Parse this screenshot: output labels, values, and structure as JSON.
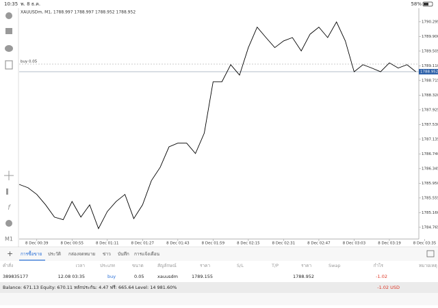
{
  "status_bar": {
    "time": "10:35",
    "date": "พ. 8 ธ.ค.",
    "battery": "58%"
  },
  "timeframe": "M1",
  "chart_data": {
    "type": "line",
    "title": "XAUUSDm, M1, 1788.997 1788.997 1788.952 1788.952",
    "x": [
      "8 Dec 00:31",
      "8 Dec 00:35",
      "8 Dec 00:39",
      "8 Dec 00:43",
      "8 Dec 00:47",
      "8 Dec 00:51",
      "8 Dec 00:55",
      "8 Dec 00:59",
      "8 Dec 01:03",
      "8 Dec 01:07",
      "8 Dec 01:11",
      "8 Dec 01:15",
      "8 Dec 01:19",
      "8 Dec 01:23",
      "8 Dec 01:27",
      "8 Dec 01:31",
      "8 Dec 01:35",
      "8 Dec 01:39",
      "8 Dec 01:43",
      "8 Dec 01:47",
      "8 Dec 01:51",
      "8 Dec 01:55",
      "8 Dec 01:59",
      "8 Dec 02:03",
      "8 Dec 02:07",
      "8 Dec 02:11",
      "8 Dec 02:15",
      "8 Dec 02:19",
      "8 Dec 02:23",
      "8 Dec 02:27",
      "8 Dec 02:31",
      "8 Dec 02:35",
      "8 Dec 02:39",
      "8 Dec 02:43",
      "8 Dec 02:47",
      "8 Dec 02:51",
      "8 Dec 02:55",
      "8 Dec 02:59",
      "8 Dec 03:03",
      "8 Dec 03:07",
      "8 Dec 03:11",
      "8 Dec 03:15",
      "8 Dec 03:19",
      "8 Dec 03:23",
      "8 Dec 03:27",
      "8 Dec 03:31",
      "8 Dec 03:35"
    ],
    "values": [
      1785.92,
      1785.83,
      1785.65,
      1785.37,
      1785.04,
      1784.97,
      1785.46,
      1785.04,
      1785.37,
      1784.73,
      1785.19,
      1785.46,
      1785.65,
      1785.0,
      1785.37,
      1786.02,
      1786.38,
      1786.93,
      1787.03,
      1787.03,
      1786.75,
      1787.3,
      1788.68,
      1788.68,
      1789.14,
      1788.86,
      1789.6,
      1790.15,
      1789.87,
      1789.6,
      1789.78,
      1789.87,
      1789.51,
      1789.96,
      1790.15,
      1789.87,
      1790.29,
      1789.78,
      1788.95,
      1789.14,
      1789.05,
      1788.95,
      1789.19,
      1789.05,
      1789.14,
      1788.952,
      null
    ],
    "color": "#000000",
    "xticks": [
      "8 Dec 00:39",
      "8 Dec 00:55",
      "8 Dec 01:11",
      "8 Dec 01:27",
      "8 Dec 01:43",
      "8 Dec 01:59",
      "8 Dec 02:15",
      "8 Dec 02:31",
      "8 Dec 02:47",
      "8 Dec 03:03",
      "8 Dec 03:19",
      "8 Dec 03:35"
    ],
    "ylim": [
      1784.45,
      1790.66
    ],
    "yticks": [
      1790.295,
      {
        "value": 1789.9,
        "label": "1789.900"
      },
      1789.505,
      {
        "value": 1789.11,
        "label": "1789.110"
      },
      1788.715,
      {
        "value": 1788.32,
        "label": "1788.320"
      },
      1787.925,
      {
        "value": 1787.53,
        "label": "1787.530"
      },
      1787.135,
      {
        "value": 1786.74,
        "label": "1786.740"
      },
      1786.345,
      {
        "value": 1785.95,
        "label": "1785.950"
      },
      1785.555,
      {
        "value": 1785.16,
        "label": "1785.160"
      },
      1784.765
    ],
    "current_price": 1788.952,
    "order_line": {
      "label": "buy 0.05",
      "value": 1789.155
    }
  },
  "tabs": [
    "การซื้อขาย",
    "ประวัติ",
    "กล่องจดหมาย",
    "ข่าว",
    "บันทึก",
    "การแจ้งเตือน"
  ],
  "table": {
    "columns": [
      "คำสั่ง",
      "เวลา",
      "ประเภท",
      "ขนาด",
      "สัญลักษณ์",
      "ราคา",
      "S/L",
      "T/P",
      "ราคา",
      "Swap",
      "กำไร",
      "หมายเหตุ"
    ],
    "rows": [
      [
        "389835177",
        "12.08 03:35",
        "buy",
        "0.05",
        "xauusdm",
        "1789.155",
        "",
        "",
        "1788.952",
        "",
        "-1.02",
        ""
      ]
    ]
  },
  "summary": {
    "text": "Balance: 671.13 Equity: 670.11 หลักประกัน: 4.47 ฟรี: 665.64 Level: 14 981.60%",
    "profit": "-1.02  USD"
  }
}
